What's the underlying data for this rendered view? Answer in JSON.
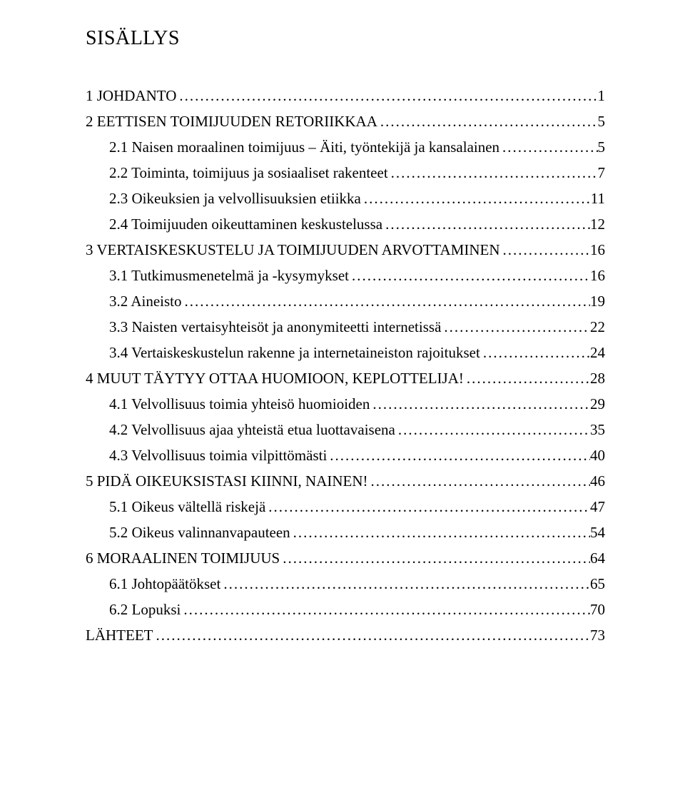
{
  "title": "SISÄLLYS",
  "entries": [
    {
      "level": 1,
      "label": "1 JOHDANTO",
      "page": "1"
    },
    {
      "level": 1,
      "label": "2 EETTISEN TOIMIJUUDEN RETORIIKKAA",
      "page": "5"
    },
    {
      "level": 2,
      "label": "2.1 Naisen moraalinen toimijuus – Äiti, työntekijä ja kansalainen",
      "page": "5"
    },
    {
      "level": 2,
      "label": "2.2 Toiminta, toimijuus ja sosiaaliset rakenteet",
      "page": "7"
    },
    {
      "level": 2,
      "label": "2.3 Oikeuksien ja velvollisuuksien etiikka",
      "page": "11"
    },
    {
      "level": 2,
      "label": "2.4 Toimijuuden oikeuttaminen keskustelussa",
      "page": "12"
    },
    {
      "level": 1,
      "label": "3 VERTAISKESKUSTELU JA TOIMIJUUDEN ARVOTTAMINEN",
      "page": "16"
    },
    {
      "level": 2,
      "label": "3.1 Tutkimusmenetelmä ja -kysymykset",
      "page": "16"
    },
    {
      "level": 2,
      "label": "3.2 Aineisto",
      "page": "19"
    },
    {
      "level": 2,
      "label": "3.3 Naisten vertaisyhteisöt ja anonymiteetti internetissä",
      "page": "22"
    },
    {
      "level": 2,
      "label": "3.4 Vertaiskeskustelun rakenne ja internetaineiston rajoitukset",
      "page": "24"
    },
    {
      "level": 1,
      "label": "4 MUUT TÄYTYY OTTAA HUOMIOON, KEPLOTTELIJA!",
      "page": "28"
    },
    {
      "level": 2,
      "label": "4.1 Velvollisuus toimia yhteisö huomioiden",
      "page": "29"
    },
    {
      "level": 2,
      "label": "4.2 Velvollisuus ajaa yhteistä etua luottavaisena",
      "page": "35"
    },
    {
      "level": 2,
      "label": "4.3 Velvollisuus toimia vilpittömästi",
      "page": "40"
    },
    {
      "level": 1,
      "label": "5 PIDÄ OIKEUKSISTASI KIINNI, NAINEN!",
      "page": "46"
    },
    {
      "level": 2,
      "label": "5.1 Oikeus vältellä riskejä",
      "page": "47"
    },
    {
      "level": 2,
      "label": "5.2 Oikeus valinnanvapauteen",
      "page": "54"
    },
    {
      "level": 1,
      "label": "6 MORAALINEN TOIMIJUUS",
      "page": "64"
    },
    {
      "level": 2,
      "label": "6.1 Johtopäätökset",
      "page": "65"
    },
    {
      "level": 2,
      "label": "6.2 Lopuksi",
      "page": "70"
    },
    {
      "level": 1,
      "label": "LÄHTEET",
      "page": "73"
    }
  ]
}
